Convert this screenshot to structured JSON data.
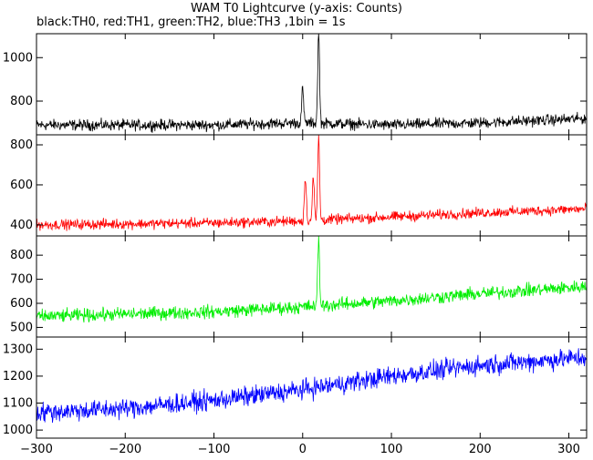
{
  "title": "WAM T0 Lightcurve (y-axis: Counts)",
  "subtitle": "black:TH0, red:TH1, green:TH2, blue:TH3 ,1bin = 1s",
  "chart_data": {
    "type": "line",
    "title": "WAM T0 Lightcurve (y-axis: Counts)",
    "subtitle": "black:TH0, red:TH1, green:TH2, blue:TH3 ,1bin = 1s",
    "xlabel": "",
    "ylabel": "",
    "xlim": [
      -300,
      320
    ],
    "xticks": [
      -300,
      -200,
      -100,
      0,
      100,
      200,
      300
    ],
    "grid": false,
    "panels": [
      {
        "name": "TH0",
        "color": "#000000",
        "ylim": [
          645,
          1110
        ],
        "yticks": [
          800,
          1000
        ],
        "baseline": [
          [
            -300,
            690
          ],
          [
            -100,
            690
          ],
          [
            0,
            700
          ],
          [
            100,
            690
          ],
          [
            200,
            700
          ],
          [
            320,
            720
          ]
        ],
        "noise": 28,
        "peaks": [
          [
            0,
            860
          ],
          [
            18,
            1110
          ]
        ]
      },
      {
        "name": "TH1",
        "color": "#ff0000",
        "ylim": [
          345,
          850
        ],
        "yticks": [
          400,
          600,
          800
        ],
        "baseline": [
          [
            -300,
            400
          ],
          [
            -100,
            410
          ],
          [
            0,
            420
          ],
          [
            100,
            440
          ],
          [
            200,
            460
          ],
          [
            320,
            480
          ]
        ],
        "noise": 28,
        "peaks": [
          [
            3,
            640
          ],
          [
            12,
            640
          ],
          [
            18,
            840
          ]
        ]
      },
      {
        "name": "TH2",
        "color": "#00ee00",
        "ylim": [
          460,
          880
        ],
        "yticks": [
          500,
          600,
          700,
          800
        ],
        "baseline": [
          [
            -300,
            545
          ],
          [
            -100,
            565
          ],
          [
            0,
            585
          ],
          [
            100,
            610
          ],
          [
            200,
            640
          ],
          [
            320,
            670
          ]
        ],
        "noise": 30,
        "peaks": [
          [
            18,
            860
          ]
        ]
      },
      {
        "name": "TH3",
        "color": "#0000ff",
        "ylim": [
          970,
          1345
        ],
        "yticks": [
          1000,
          1100,
          1200,
          1300
        ],
        "baseline": [
          [
            -300,
            1065
          ],
          [
            -200,
            1080
          ],
          [
            -100,
            1110
          ],
          [
            0,
            1150
          ],
          [
            100,
            1200
          ],
          [
            200,
            1240
          ],
          [
            320,
            1270
          ]
        ],
        "noise": 40,
        "peaks": []
      }
    ]
  }
}
